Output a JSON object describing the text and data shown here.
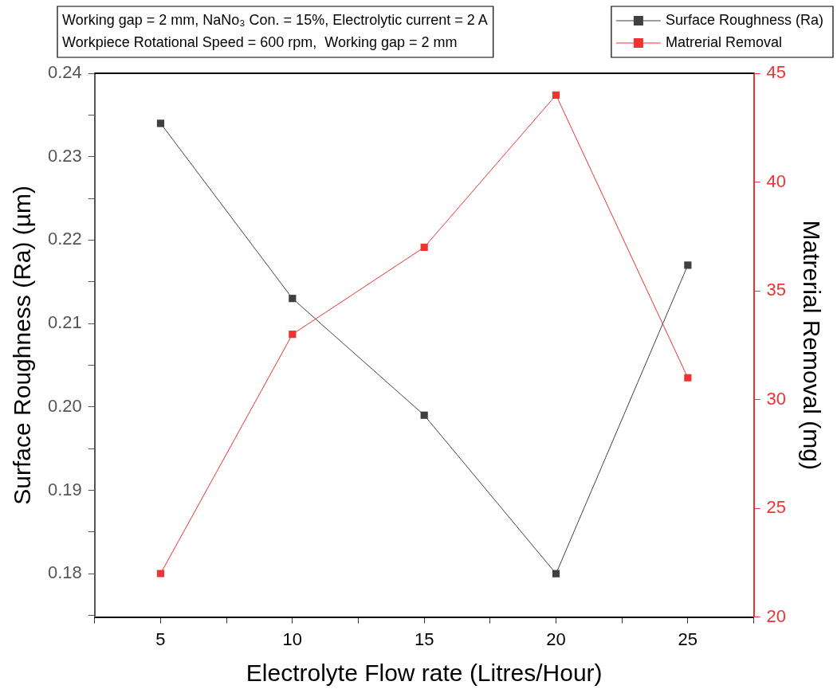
{
  "chart_data": {
    "type": "line",
    "xlabel": "Electrolyte Flow rate (Litres/Hour)",
    "ylabel": "Surface Roughness (Ra) (µm)",
    "y2label": "Matrerial Removal (mg)",
    "x": [
      5,
      10,
      15,
      20,
      25
    ],
    "series": [
      {
        "name": "Surface Roughness (Ra)",
        "color": "#404040",
        "values": [
          0.234,
          0.213,
          0.199,
          0.18,
          0.217
        ]
      },
      {
        "name": "Matrerial Removal",
        "color": "#ee3333",
        "axis": "y2",
        "values": [
          22,
          33,
          37,
          44,
          31
        ]
      }
    ],
    "xlim": [
      2.5,
      27.5
    ],
    "xticks": [
      {
        "value": 2.5,
        "label": null
      },
      5,
      {
        "value": 7.5,
        "label": null
      },
      10,
      {
        "value": 12.5,
        "label": null
      },
      15,
      {
        "value": 17.5,
        "label": null
      },
      20,
      {
        "value": 22.5,
        "label": null
      },
      25,
      {
        "value": 27.5,
        "label": null
      }
    ],
    "ylim": [
      0.1748,
      0.24
    ],
    "yticks": [
      {
        "value": 0.175,
        "label": null
      },
      {
        "value": 0.18,
        "label": "0.18"
      },
      {
        "value": 0.185,
        "label": null
      },
      {
        "value": 0.19,
        "label": "0.19"
      },
      {
        "value": 0.195,
        "label": null
      },
      {
        "value": 0.2,
        "label": "0.20"
      },
      {
        "value": 0.205,
        "label": null
      },
      {
        "value": 0.21,
        "label": "0.21"
      },
      {
        "value": 0.215,
        "label": null
      },
      {
        "value": 0.22,
        "label": "0.22"
      },
      {
        "value": 0.225,
        "label": null
      },
      {
        "value": 0.23,
        "label": "0.23"
      },
      {
        "value": 0.235,
        "label": null
      },
      {
        "value": 0.24,
        "label": "0.24"
      }
    ],
    "y2lim": [
      20,
      45
    ],
    "y2ticks": [
      20,
      25,
      30,
      35,
      40,
      45
    ],
    "annotations": [
      "Working gap = 2 mm, NaNo₃ Con. = 15%, Electrolytic current = 2 A",
      "Workpiece Rotational Speed = 600 rpm,  Working gap = 2 mm"
    ],
    "legend": "top right",
    "marker": "square",
    "line_style": "solid",
    "grid": false
  }
}
